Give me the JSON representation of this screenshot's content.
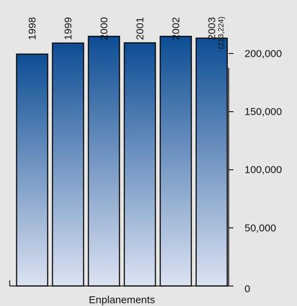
{
  "chart_data": {
    "type": "bar",
    "categories": [
      "1998",
      "1999",
      "2000",
      "2001",
      "2002",
      "2003"
    ],
    "values": [
      199500,
      209000,
      214800,
      209200,
      214800,
      213224
    ],
    "annotations": [
      {
        "category": "2003",
        "text": "(213,224)"
      }
    ],
    "xlabel": "Enplanements",
    "ylabel": "",
    "ylim": [
      0,
      230000
    ],
    "yticks": [
      0,
      50000,
      100000,
      150000,
      200000
    ],
    "ytick_labels": [
      "0",
      "50,000",
      "100,000",
      "150,000",
      "200,000"
    ],
    "y_axis_position": "right",
    "category_labels_position": "top-rotated",
    "grid": false,
    "legend": "none",
    "colors": {
      "background": "#e6e6e6",
      "bar_top": "#0d4d94",
      "bar_bottom": "#dce2f2",
      "bar_outline": "#000000",
      "axis": "#000000",
      "text": "#111111"
    }
  }
}
